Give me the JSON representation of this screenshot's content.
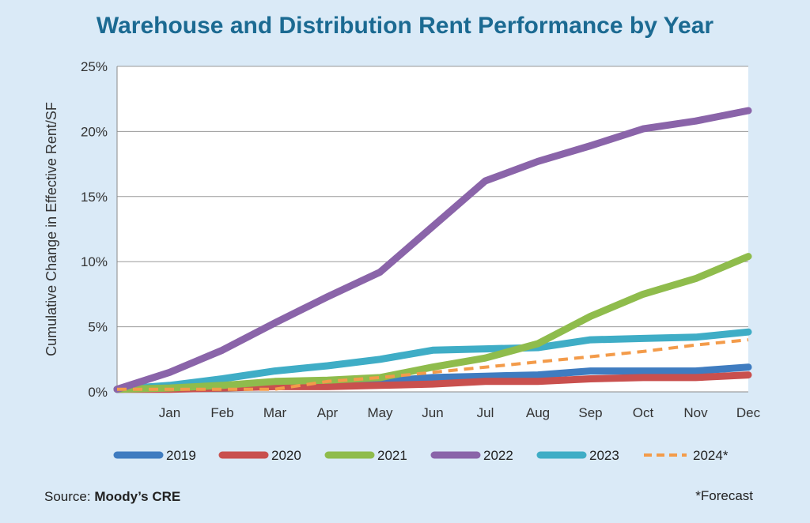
{
  "chart_data": {
    "type": "line",
    "title": "Warehouse and Distribution Rent Performance by Year",
    "ylabel": "Cumulative Change in Effective Rent/SF",
    "xlabel": "",
    "categories": [
      "",
      "Jan",
      "Feb",
      "Mar",
      "Apr",
      "May",
      "Jun",
      "Jul",
      "Aug",
      "Sep",
      "Oct",
      "Nov",
      "Dec"
    ],
    "ylim": [
      0,
      25
    ],
    "yticks": [
      0,
      5,
      10,
      15,
      20,
      25
    ],
    "ytick_labels": [
      "0%",
      "5%",
      "10%",
      "15%",
      "20%",
      "25%"
    ],
    "grid": "horizontal",
    "legend_position": "bottom",
    "series": [
      {
        "name": "2019",
        "color": "#3f7cc0",
        "dashed": false,
        "values": [
          0.2,
          0.3,
          0.4,
          0.5,
          0.6,
          0.8,
          1.1,
          1.2,
          1.3,
          1.6,
          1.6,
          1.6,
          1.9
        ]
      },
      {
        "name": "2020",
        "color": "#c9504e",
        "dashed": false,
        "values": [
          0.2,
          0.2,
          0.3,
          0.4,
          0.4,
          0.5,
          0.6,
          0.8,
          0.8,
          1.0,
          1.1,
          1.1,
          1.3
        ]
      },
      {
        "name": "2021",
        "color": "#8fbc4c",
        "dashed": false,
        "values": [
          0.2,
          0.3,
          0.5,
          0.8,
          0.9,
          1.1,
          1.9,
          2.6,
          3.7,
          5.8,
          7.5,
          8.7,
          10.4
        ]
      },
      {
        "name": "2022",
        "color": "#8a64a9",
        "dashed": false,
        "values": [
          0.2,
          1.5,
          3.2,
          5.3,
          7.3,
          9.2,
          12.7,
          16.2,
          17.7,
          18.9,
          20.2,
          20.8,
          21.6
        ]
      },
      {
        "name": "2023",
        "color": "#3fadc6",
        "dashed": false,
        "values": [
          0.2,
          0.5,
          1.0,
          1.6,
          2.0,
          2.5,
          3.2,
          3.3,
          3.4,
          4.0,
          4.1,
          4.2,
          4.6
        ]
      },
      {
        "name": "2024*",
        "color": "#f39b4a",
        "dashed": true,
        "values": [
          0.2,
          0.2,
          0.2,
          0.2,
          0.8,
          1.1,
          1.5,
          1.9,
          2.3,
          2.7,
          3.1,
          3.6,
          4.0
        ]
      }
    ]
  },
  "footer": {
    "source_prefix": "Source: ",
    "source_name": "Moody’s CRE",
    "footnote": "*Forecast"
  }
}
